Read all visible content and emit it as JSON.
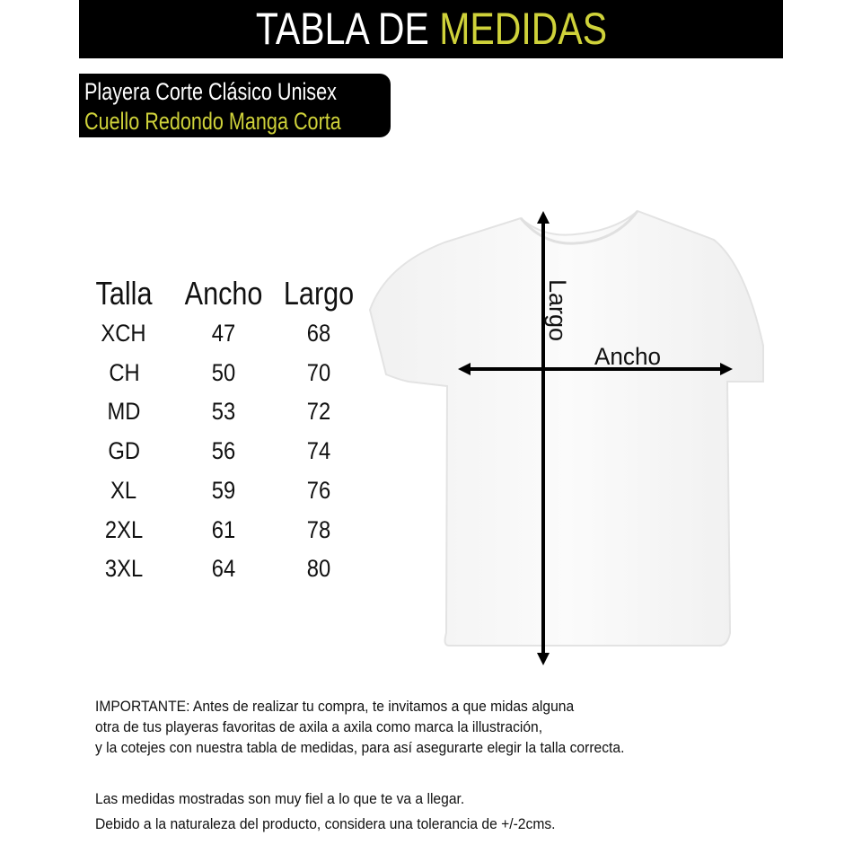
{
  "header": {
    "title_part1": "TABLA DE",
    "title_part2": "MEDIDAS"
  },
  "subtitle": {
    "line1": "Playera Corte Clásico Unisex",
    "line2": "Cuello Redondo Manga Corta"
  },
  "size_table": {
    "columns": [
      "Talla",
      "Ancho",
      "Largo"
    ],
    "rows": [
      [
        "XCH",
        "47",
        "68"
      ],
      [
        "CH",
        "50",
        "70"
      ],
      [
        "MD",
        "53",
        "72"
      ],
      [
        "GD",
        "56",
        "74"
      ],
      [
        "XL",
        "59",
        "76"
      ],
      [
        "2XL",
        "61",
        "78"
      ],
      [
        "3XL",
        "64",
        "80"
      ]
    ]
  },
  "diagram": {
    "length_label": "Largo",
    "width_label": "Ancho"
  },
  "notes": {
    "important": [
      "IMPORTANTE: Antes de realizar tu compra, te invitamos a que midas alguna",
      "otra de tus playeras favoritas de axila a axila como marca la illustración,",
      "y la cotejes con nuestra tabla de medidas, para así asegurarte elegir la talla correcta."
    ],
    "disclaimer": [
      "Las medidas mostradas son muy fiel a lo que te va a llegar.",
      "Debido a la naturaleza del producto, considera una tolerancia de +/-2cms."
    ]
  },
  "colors": {
    "accent": "#cfd23a",
    "banner": "#000000"
  }
}
